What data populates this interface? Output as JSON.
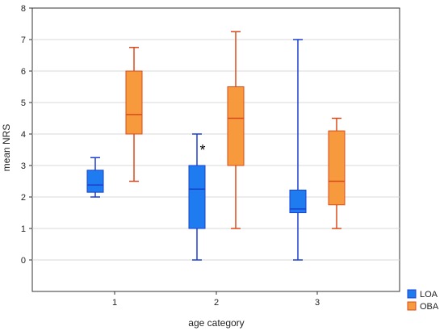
{
  "chart_data": {
    "type": "box",
    "xlabel": "age category",
    "ylabel": "mean NRS",
    "categories": [
      "1",
      "2",
      "3"
    ],
    "ylim": [
      -1,
      8
    ],
    "yticks": [
      "0",
      "1",
      "2",
      "3",
      "4",
      "5",
      "6",
      "7",
      "8"
    ],
    "grid": true,
    "legend_position": "bottom-right (outside plot)",
    "annotation": "*",
    "series": [
      {
        "name": "LOA",
        "color": "#1e7cf0",
        "edge": "#1a3fcf",
        "boxes": [
          {
            "min": 2.0,
            "q1": 2.15,
            "median": 2.38,
            "q3": 2.85,
            "max": 3.25
          },
          {
            "min": 0.0,
            "q1": 1.0,
            "median": 2.25,
            "q3": 3.0,
            "max": 4.0
          },
          {
            "min": 0.0,
            "q1": 1.5,
            "median": 1.62,
            "q3": 2.22,
            "max": 7.0
          }
        ]
      },
      {
        "name": "OBA",
        "color": "#f79a3e",
        "edge": "#d84a1b",
        "boxes": [
          {
            "min": 2.5,
            "q1": 4.0,
            "median": 4.62,
            "q3": 6.0,
            "max": 6.75
          },
          {
            "min": 1.0,
            "q1": 3.0,
            "median": 4.5,
            "q3": 5.5,
            "max": 7.25
          },
          {
            "min": 1.0,
            "q1": 1.75,
            "median": 2.5,
            "q3": 4.1,
            "max": 4.5
          }
        ]
      }
    ]
  }
}
